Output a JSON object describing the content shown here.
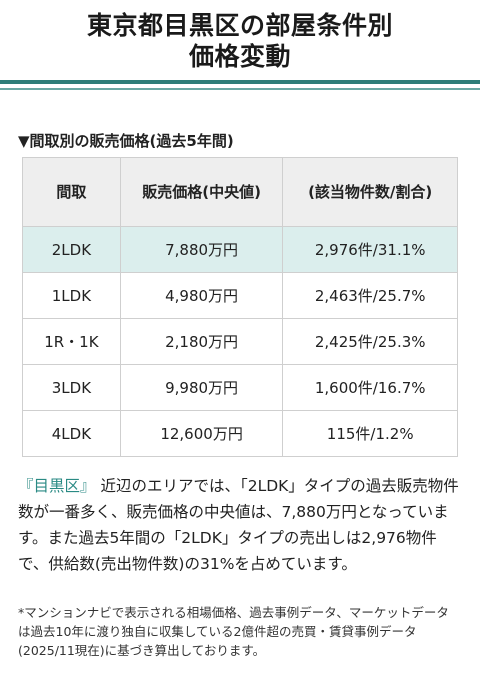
{
  "header": {
    "title_line1": "東京都目黒区の部屋条件別",
    "title_line2": "価格変動"
  },
  "section": {
    "heading": "▼間取別の販売価格(過去5年間)"
  },
  "table": {
    "columns": [
      "間取",
      "販売価格(中央値)",
      "(該当物件数/割合)"
    ],
    "rows": [
      {
        "layout": "2LDK",
        "price": "7,880万円",
        "share": "2,976件/31.1%",
        "highlight": true
      },
      {
        "layout": "1LDK",
        "price": "4,980万円",
        "share": "2,463件/25.7%",
        "highlight": false
      },
      {
        "layout": "1R・1K",
        "price": "2,180万円",
        "share": "2,425件/25.3%",
        "highlight": false
      },
      {
        "layout": "3LDK",
        "price": "9,980万円",
        "share": "1,600件/16.7%",
        "highlight": false
      },
      {
        "layout": "4LDK",
        "price": "12,600万円",
        "share": "115件/1.2%",
        "highlight": false
      }
    ]
  },
  "paragraph": {
    "area_name": "『目黒区』",
    "text": "近辺のエリアでは、「2LDK」タイプの過去販売物件数が一番多く、販売価格の中央値は、7,880万円となっています。また過去5年間の「2LDK」タイプの売出しは2,976物件で、供給数(売出物件数)の31%を占めています。"
  },
  "note": {
    "text": "*マンションナビで表示される相場価格、過去事例データ、マーケットデータは過去10年に渡り独自に収集している2億件超の売買・賃貸事例データ(2025/11現在)に基づき算出しております。"
  },
  "colors": {
    "accent": "#2e7d78",
    "highlight_row": "#dbeeed",
    "link": "#2a8a84"
  }
}
